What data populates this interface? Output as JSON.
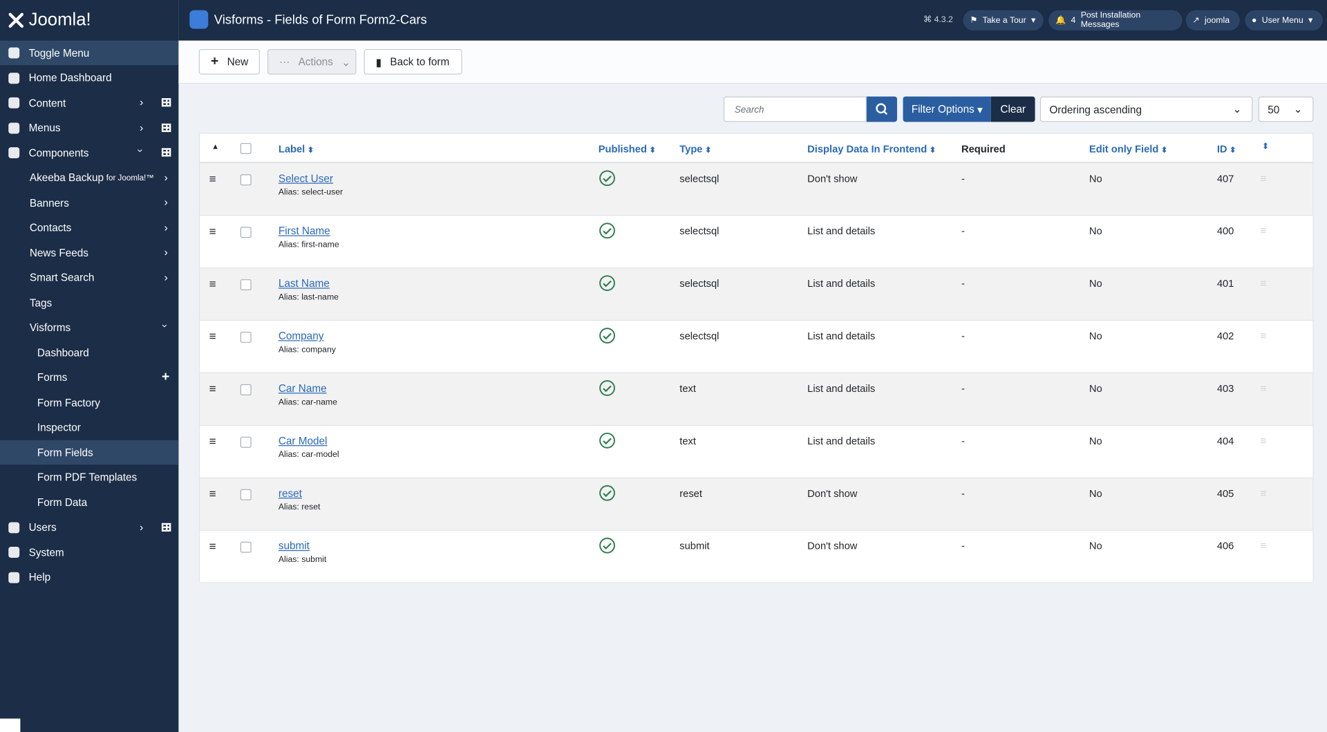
{
  "header": {
    "brand": "Joomla!",
    "title": "Visforms - Fields of Form Form2-Cars",
    "version": "4.3.2",
    "tour": "Take a Tour",
    "notifications": "4",
    "notifications_label": "Post Installation Messages",
    "site": "joomla",
    "user": "User Menu"
  },
  "sidebar": {
    "items": [
      {
        "label": "Toggle Menu"
      },
      {
        "label": "Home Dashboard"
      },
      {
        "label": "Content"
      },
      {
        "label": "Menus"
      },
      {
        "label": "Components"
      },
      {
        "label": "Akeeba Backup",
        "note": "for Joomla!™"
      },
      {
        "label": "Banners"
      },
      {
        "label": "Contacts"
      },
      {
        "label": "News Feeds"
      },
      {
        "label": "Smart Search"
      },
      {
        "label": "Tags"
      },
      {
        "label": "Visforms"
      },
      {
        "label": "Dashboard"
      },
      {
        "label": "Forms"
      },
      {
        "label": "Form Factory"
      },
      {
        "label": "Inspector"
      },
      {
        "label": "Form Fields"
      },
      {
        "label": "Form PDF Templates"
      },
      {
        "label": "Form Data"
      },
      {
        "label": "Users"
      },
      {
        "label": "System"
      },
      {
        "label": "Help"
      }
    ]
  },
  "toolbar": {
    "new": "New",
    "actions": "Actions",
    "back": "Back to form"
  },
  "filters": {
    "search_placeholder": "Search",
    "filter_options": "Filter Options",
    "clear": "Clear",
    "ordering": "Ordering ascending",
    "limit": "50"
  },
  "table": {
    "headers": [
      "Label",
      "Published",
      "Type",
      "Display Data In Frontend",
      "Required",
      "Edit only Field",
      "ID"
    ],
    "rows": [
      {
        "label": "Select User",
        "alias": "Alias: select-user",
        "type": "selectsql",
        "display": "Don't show",
        "required": "-",
        "edit_only": "No",
        "id": 407
      },
      {
        "label": "First Name",
        "alias": "Alias: first-name",
        "type": "selectsql",
        "display": "List and details",
        "required": "-",
        "edit_only": "No",
        "id": 400
      },
      {
        "label": "Last Name",
        "alias": "Alias: last-name",
        "type": "selectsql",
        "display": "List and details",
        "required": "-",
        "edit_only": "No",
        "id": 401
      },
      {
        "label": "Company",
        "alias": "Alias: company",
        "type": "selectsql",
        "display": "List and details",
        "required": "-",
        "edit_only": "No",
        "id": 402
      },
      {
        "label": "Car Name",
        "alias": "Alias: car-name",
        "type": "text",
        "display": "List and details",
        "required": "-",
        "edit_only": "No",
        "id": 403
      },
      {
        "label": "Car Model",
        "alias": "Alias: car-model",
        "type": "text",
        "display": "List and details",
        "required": "-",
        "edit_only": "No",
        "id": 404
      },
      {
        "label": "reset",
        "alias": "Alias: reset",
        "type": "reset",
        "display": "Don't show",
        "required": "-",
        "edit_only": "No",
        "id": 405
      },
      {
        "label": "submit",
        "alias": "Alias: submit",
        "type": "submit",
        "display": "Don't show",
        "required": "-",
        "edit_only": "No",
        "id": 406
      }
    ]
  }
}
